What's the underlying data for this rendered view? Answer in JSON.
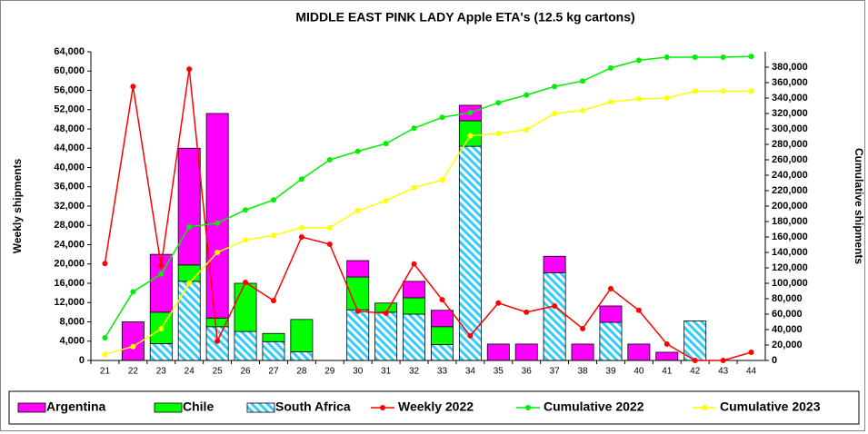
{
  "chart_data": {
    "type": "bar",
    "stacked": true,
    "title": "MIDDLE EAST PINK LADY Apple ETA's (12.5 kg cartons)",
    "y_label": "Weekly shipments",
    "y2_label": "Cumulative shipments",
    "categories": [
      21,
      22,
      23,
      24,
      25,
      26,
      27,
      28,
      29,
      30,
      31,
      32,
      33,
      34,
      35,
      36,
      37,
      38,
      39,
      40,
      41,
      42,
      43,
      44
    ],
    "ylim": [
      0,
      64000
    ],
    "yticks": [
      {
        "value": 0,
        "label": "0"
      },
      {
        "value": 4000,
        "label": "4,000"
      },
      {
        "value": 8000,
        "label": "8,000"
      },
      {
        "value": 12000,
        "label": "12,000"
      },
      {
        "value": 16000,
        "label": "16,000"
      },
      {
        "value": 20000,
        "label": "20,000"
      },
      {
        "value": 24000,
        "label": "24,000"
      },
      {
        "value": 28000,
        "label": "28,000"
      },
      {
        "value": 32000,
        "label": "32,000"
      },
      {
        "value": 36000,
        "label": "36,000"
      },
      {
        "value": 40000,
        "label": "40,000"
      },
      {
        "value": 44000,
        "label": "44,000"
      },
      {
        "value": 48000,
        "label": "48,000"
      },
      {
        "value": 52000,
        "label": "52,000"
      },
      {
        "value": 56000,
        "label": "56,000"
      },
      {
        "value": 60000,
        "label": "60,000"
      },
      {
        "value": 64000,
        "label": "64,000"
      }
    ],
    "y2lim": [
      0,
      400000
    ],
    "y2ticks": [
      {
        "value": 0,
        "label": "0"
      },
      {
        "value": 20000,
        "label": "20,000"
      },
      {
        "value": 40000,
        "label": "40,000"
      },
      {
        "value": 60000,
        "label": "60,000"
      },
      {
        "value": 80000,
        "label": "80,000"
      },
      {
        "value": 100000,
        "label": "100,000"
      },
      {
        "value": 120000,
        "label": "120,000"
      },
      {
        "value": 140000,
        "label": "140,000"
      },
      {
        "value": 160000,
        "label": "160,000"
      },
      {
        "value": 180000,
        "label": "180,000"
      },
      {
        "value": 200000,
        "label": "200,000"
      },
      {
        "value": 220000,
        "label": "220,000"
      },
      {
        "value": 240000,
        "label": "240,000"
      },
      {
        "value": 260000,
        "label": "260,000"
      },
      {
        "value": 280000,
        "label": "280,000"
      },
      {
        "value": 300000,
        "label": "300,000"
      },
      {
        "value": 320000,
        "label": "320,000"
      },
      {
        "value": 340000,
        "label": "340,000"
      },
      {
        "value": 360000,
        "label": "360,000"
      },
      {
        "value": 380000,
        "label": "380,000"
      }
    ],
    "series": [
      {
        "name": "South Africa",
        "type": "bar",
        "color": "#33ccff",
        "hatch": true,
        "values": [
          0,
          0,
          3500,
          16400,
          7000,
          6000,
          3900,
          1800,
          0,
          10500,
          10000,
          9600,
          3300,
          44400,
          0,
          0,
          18200,
          0,
          7900,
          0,
          0,
          8200,
          0,
          0
        ]
      },
      {
        "name": "Chile",
        "type": "bar",
        "color": "#00ff00",
        "values": [
          0,
          0,
          6500,
          3400,
          1800,
          10000,
          1700,
          6700,
          0,
          6800,
          1900,
          3400,
          3700,
          5300,
          0,
          0,
          0,
          0,
          0,
          0,
          0,
          0,
          0,
          0
        ]
      },
      {
        "name": "Argentina",
        "type": "bar",
        "color": "#ff00ff",
        "values": [
          0,
          8000,
          12000,
          24200,
          42400,
          0,
          0,
          0,
          0,
          3400,
          0,
          3400,
          3400,
          3200,
          3400,
          3400,
          3400,
          3400,
          3400,
          3400,
          1700,
          0,
          0,
          0
        ]
      },
      {
        "name": "Weekly 2022",
        "type": "line",
        "color": "#ff0000",
        "values": [
          20100,
          56800,
          19600,
          60400,
          4000,
          16200,
          12400,
          25600,
          24100,
          10200,
          9800,
          20000,
          12600,
          5100,
          11900,
          10000,
          11300,
          6600,
          14900,
          10400,
          3400,
          0,
          0,
          1700
        ]
      },
      {
        "name": "Cumulative 2022",
        "type": "line",
        "color": "#00ee00",
        "axis": "y2",
        "values": [
          29400,
          89000,
          112000,
          173000,
          178000,
          195000,
          208000,
          235000,
          260000,
          271000,
          281000,
          301000,
          315000,
          321000,
          334000,
          344000,
          355000,
          362000,
          379000,
          389000,
          393000,
          393000,
          393000,
          394000
        ]
      },
      {
        "name": "Cumulative 2023",
        "type": "line",
        "color": "#ffff00",
        "axis": "y2",
        "values": [
          8000,
          18000,
          41000,
          100000,
          140000,
          156000,
          162000,
          172000,
          172000,
          194000,
          207000,
          224000,
          234000,
          291000,
          294000,
          299000,
          320000,
          324000,
          335000,
          339000,
          340000,
          349000,
          349000,
          349000
        ]
      }
    ],
    "legend_order": [
      2,
      1,
      0,
      3,
      4,
      5
    ]
  }
}
